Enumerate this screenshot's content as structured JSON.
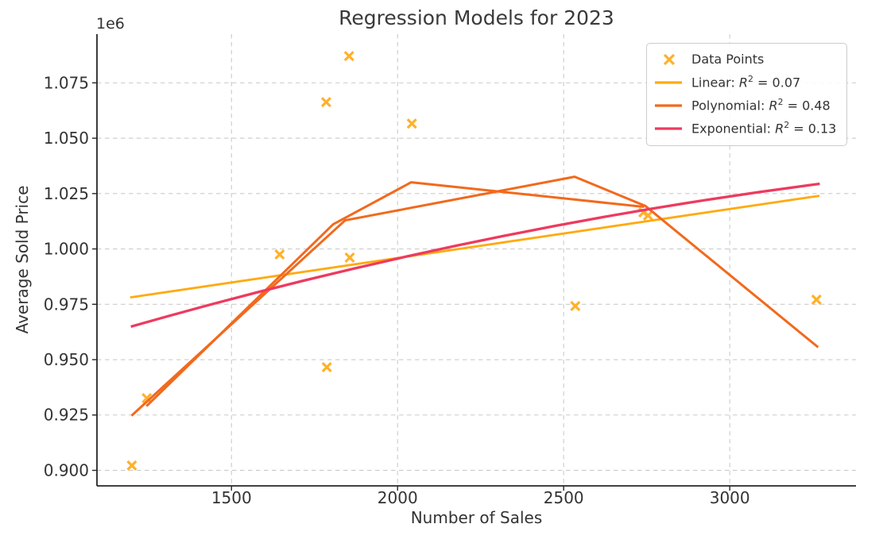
{
  "title": "Regression Models for 2023",
  "colors": {
    "points": "#ffb12b",
    "linear": "#ffaa0e",
    "polynomial": "#f2691c",
    "exponential": "#ee3a5e",
    "grid": "#cbcbcb",
    "spine": "#262626",
    "text": "#333333"
  },
  "chart_data": {
    "type": "scatter",
    "title": "Regression Models for 2023",
    "xlabel": "Number of Sales",
    "ylabel": "Average Sold Price",
    "y_offset_label": "1e6",
    "xlim": [
      1095,
      3380
    ],
    "ylim": [
      893000,
      1097000
    ],
    "xticks": [
      1500,
      2000,
      2500,
      3000
    ],
    "xtick_labels": [
      "1500",
      "2000",
      "2500",
      "3000"
    ],
    "yticks": [
      900000,
      925000,
      950000,
      975000,
      1000000,
      1025000,
      1050000,
      1075000
    ],
    "ytick_labels": [
      "0.900",
      "0.925",
      "0.950",
      "0.975",
      "1.000",
      "1.025",
      "1.050",
      "1.075"
    ],
    "grid": true,
    "scatter": {
      "name": "Data Points",
      "points": [
        [
          1200,
          902200
        ],
        [
          1245,
          932600
        ],
        [
          1645,
          997500
        ],
        [
          1785,
          1066300
        ],
        [
          1787,
          946600
        ],
        [
          1854,
          1087100
        ],
        [
          1856,
          996100
        ],
        [
          2043,
          1056600
        ],
        [
          2535,
          974200
        ],
        [
          2740,
          1016500
        ],
        [
          2754,
          1015100
        ],
        [
          3261,
          977100
        ]
      ]
    },
    "series": [
      {
        "key": "linear",
        "name": "Linear",
        "r2": "0.07",
        "shape": "line",
        "points": [
          [
            1195,
            978100
          ],
          [
            3270,
            1024000
          ]
        ]
      },
      {
        "key": "polynomial",
        "name": "Polynomial",
        "r2": "0.48",
        "shape": "zigzag",
        "segments": [
          [
            [
              1199,
              924700
            ],
            [
              1842,
              1012900
            ],
            [
              2533,
              1032600
            ],
            [
              2746,
              1019400
            ],
            [
              3266,
              955600
            ]
          ],
          [
            [
              1244,
              929000
            ],
            [
              1806,
              1011100
            ],
            [
              2041,
              1030100
            ],
            [
              2742,
              1019000
            ]
          ]
        ]
      },
      {
        "key": "exponential",
        "name": "Exponential",
        "r2": "0.13",
        "shape": "curve",
        "points": [
          [
            1197,
            964900
          ],
          [
            2232,
            1003200
          ],
          [
            3271,
            1029400
          ]
        ]
      }
    ],
    "legend": {
      "position": "upper right",
      "entries": [
        {
          "key": "points",
          "kind": "marker",
          "label": "Data Points"
        },
        {
          "key": "linear",
          "kind": "line",
          "label": "Linear",
          "r2": "0.07"
        },
        {
          "key": "polynomial",
          "kind": "line",
          "label": "Polynomial",
          "r2": "0.48"
        },
        {
          "key": "exponential",
          "kind": "line",
          "label": "Exponential",
          "r2": "0.13"
        }
      ]
    }
  }
}
